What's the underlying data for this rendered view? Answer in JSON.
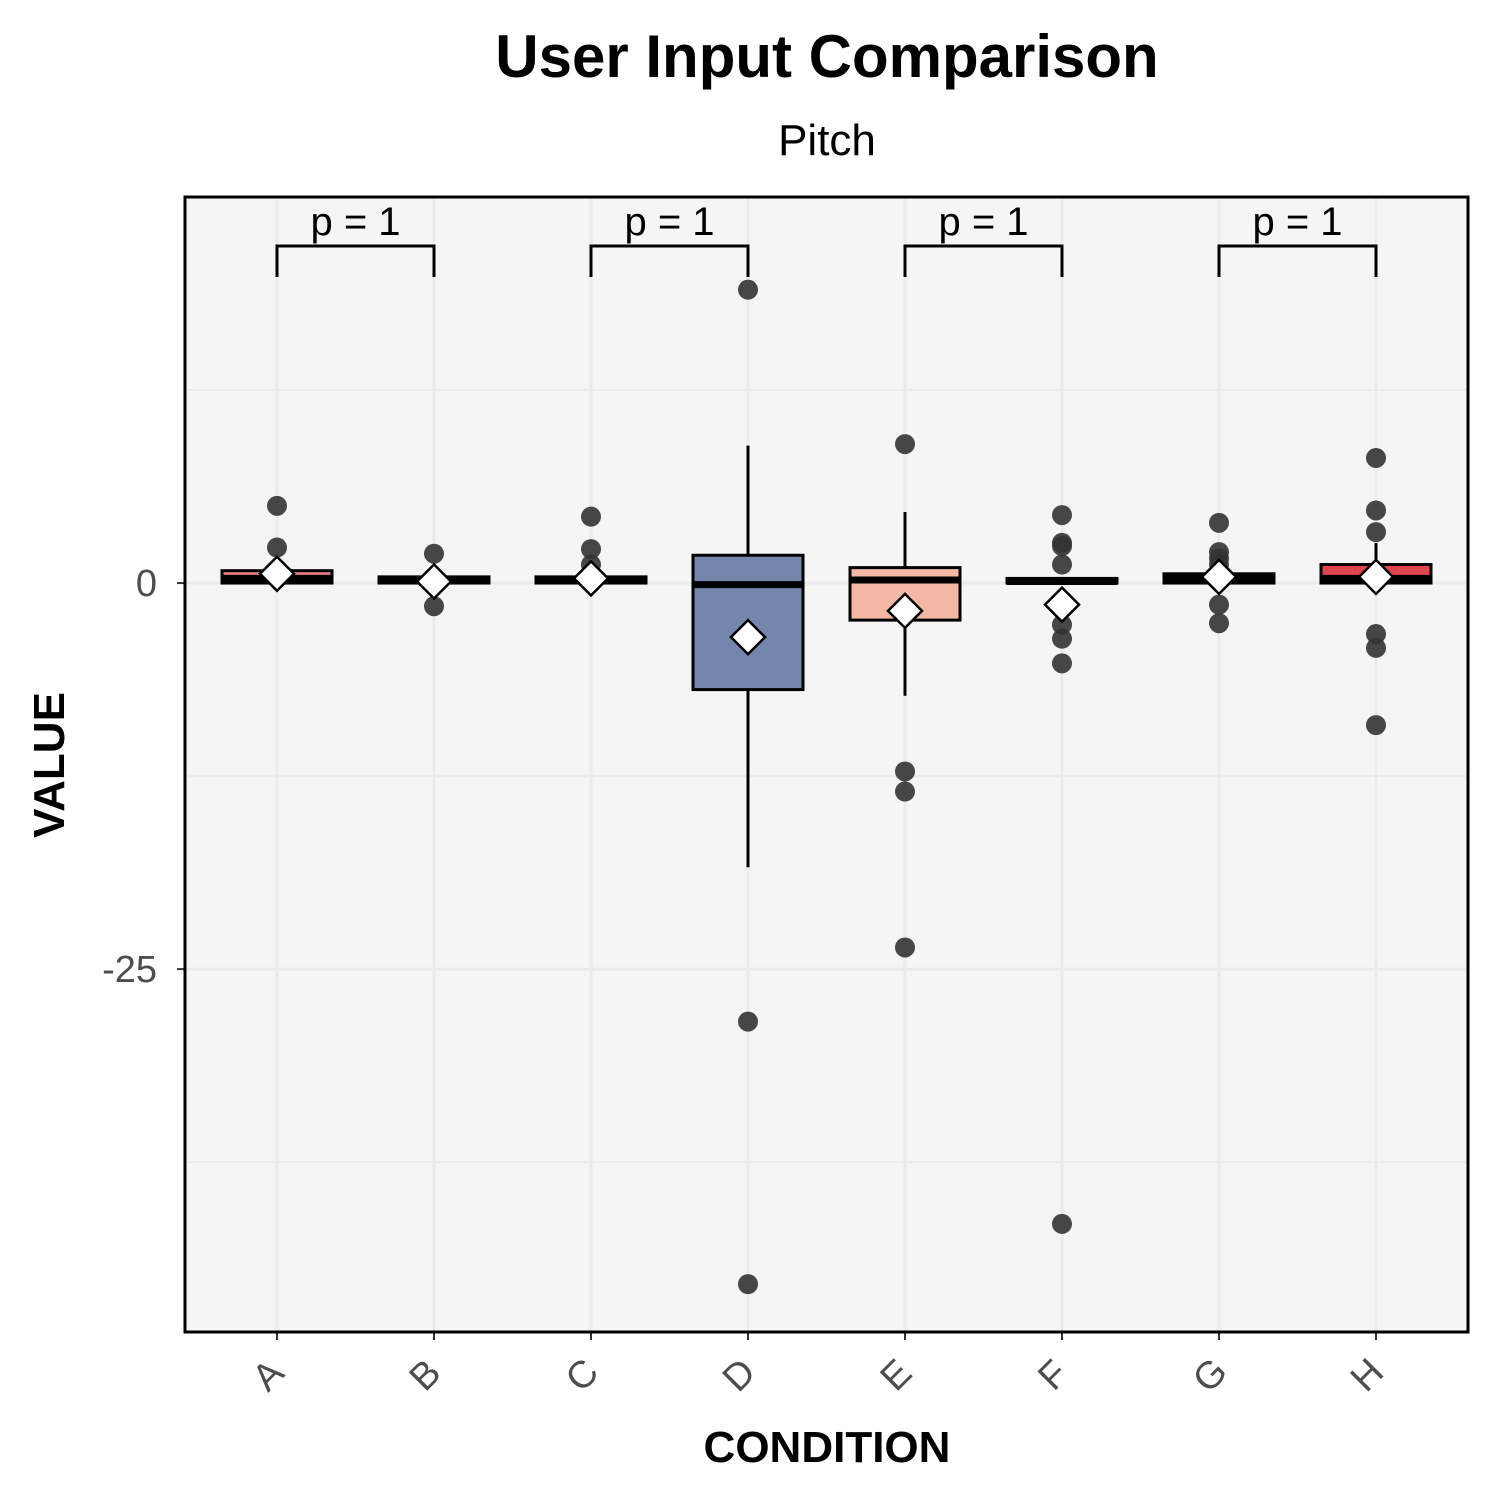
{
  "chart_data": {
    "type": "box",
    "title": "User Input Comparison",
    "subtitle": "Pitch",
    "xlabel": "CONDITION",
    "ylabel": "VALUE",
    "ylim": [
      -48.5,
      25
    ],
    "yticks": [
      0,
      -25
    ],
    "ytick_labels": [
      "0",
      "-25"
    ],
    "grid": true,
    "categories": [
      "A",
      "B",
      "C",
      "D",
      "E",
      "F",
      "G",
      "H"
    ],
    "colors": {
      "A": "#e8807a",
      "B": "#f2d0cc",
      "C": "#f5e8e5",
      "D": "#7486ab",
      "E": "#f4b8a5",
      "F": "#d9d9e6",
      "G": "#f3e4e0",
      "H": "#e04550"
    },
    "boxes": [
      {
        "category": "A",
        "q1": 0.0,
        "median": 0.3,
        "q3": 0.8,
        "whisker_low": 0.0,
        "whisker_high": 0.8,
        "mean": 0.6,
        "outliers": [
          5.0,
          2.3
        ]
      },
      {
        "category": "B",
        "q1": 0.0,
        "median": 0.2,
        "q3": 0.4,
        "whisker_low": 0.0,
        "whisker_high": 0.4,
        "mean": 0.1,
        "outliers": [
          1.9,
          -1.5
        ]
      },
      {
        "category": "C",
        "q1": 0.0,
        "median": 0.2,
        "q3": 0.4,
        "whisker_low": 0.0,
        "whisker_high": 0.4,
        "mean": 0.3,
        "outliers": [
          4.3,
          2.2,
          1.2
        ]
      },
      {
        "category": "D",
        "q1": -6.9,
        "median": -0.1,
        "q3": 1.8,
        "whisker_low": -18.4,
        "whisker_high": 8.9,
        "mean": -3.5,
        "outliers": [
          19.0,
          -28.4,
          -45.4
        ]
      },
      {
        "category": "E",
        "q1": -2.4,
        "median": 0.2,
        "q3": 1.0,
        "whisker_low": -7.3,
        "whisker_high": 4.6,
        "mean": -1.8,
        "outliers": [
          9.0,
          -12.2,
          -13.5,
          -23.6
        ]
      },
      {
        "category": "F",
        "q1": 0.0,
        "median": 0.1,
        "q3": 0.3,
        "whisker_low": 0.0,
        "whisker_high": 0.3,
        "mean": -1.4,
        "outliers": [
          4.4,
          2.6,
          2.4,
          1.2,
          -2.7,
          -3.6,
          -5.2,
          -41.5
        ]
      },
      {
        "category": "G",
        "q1": 0.0,
        "median": 0.3,
        "q3": 0.6,
        "whisker_low": 0.0,
        "whisker_high": 0.6,
        "mean": 0.4,
        "outliers": [
          3.9,
          2.0,
          1.6,
          1.2,
          -1.4,
          -2.6
        ]
      },
      {
        "category": "H",
        "q1": 0.0,
        "median": 0.3,
        "q3": 1.2,
        "whisker_low": 0.0,
        "whisker_high": 2.6,
        "mean": 0.4,
        "outliers": [
          8.1,
          4.7,
          3.3,
          -3.3,
          -4.2,
          -9.2
        ]
      }
    ],
    "comparisons": [
      {
        "pair": [
          "A",
          "B"
        ],
        "label": "p = 1"
      },
      {
        "pair": [
          "C",
          "D"
        ],
        "label": "p = 1"
      },
      {
        "pair": [
          "E",
          "F"
        ],
        "label": "p = 1"
      },
      {
        "pair": [
          "G",
          "H"
        ],
        "label": "p = 1"
      }
    ]
  }
}
